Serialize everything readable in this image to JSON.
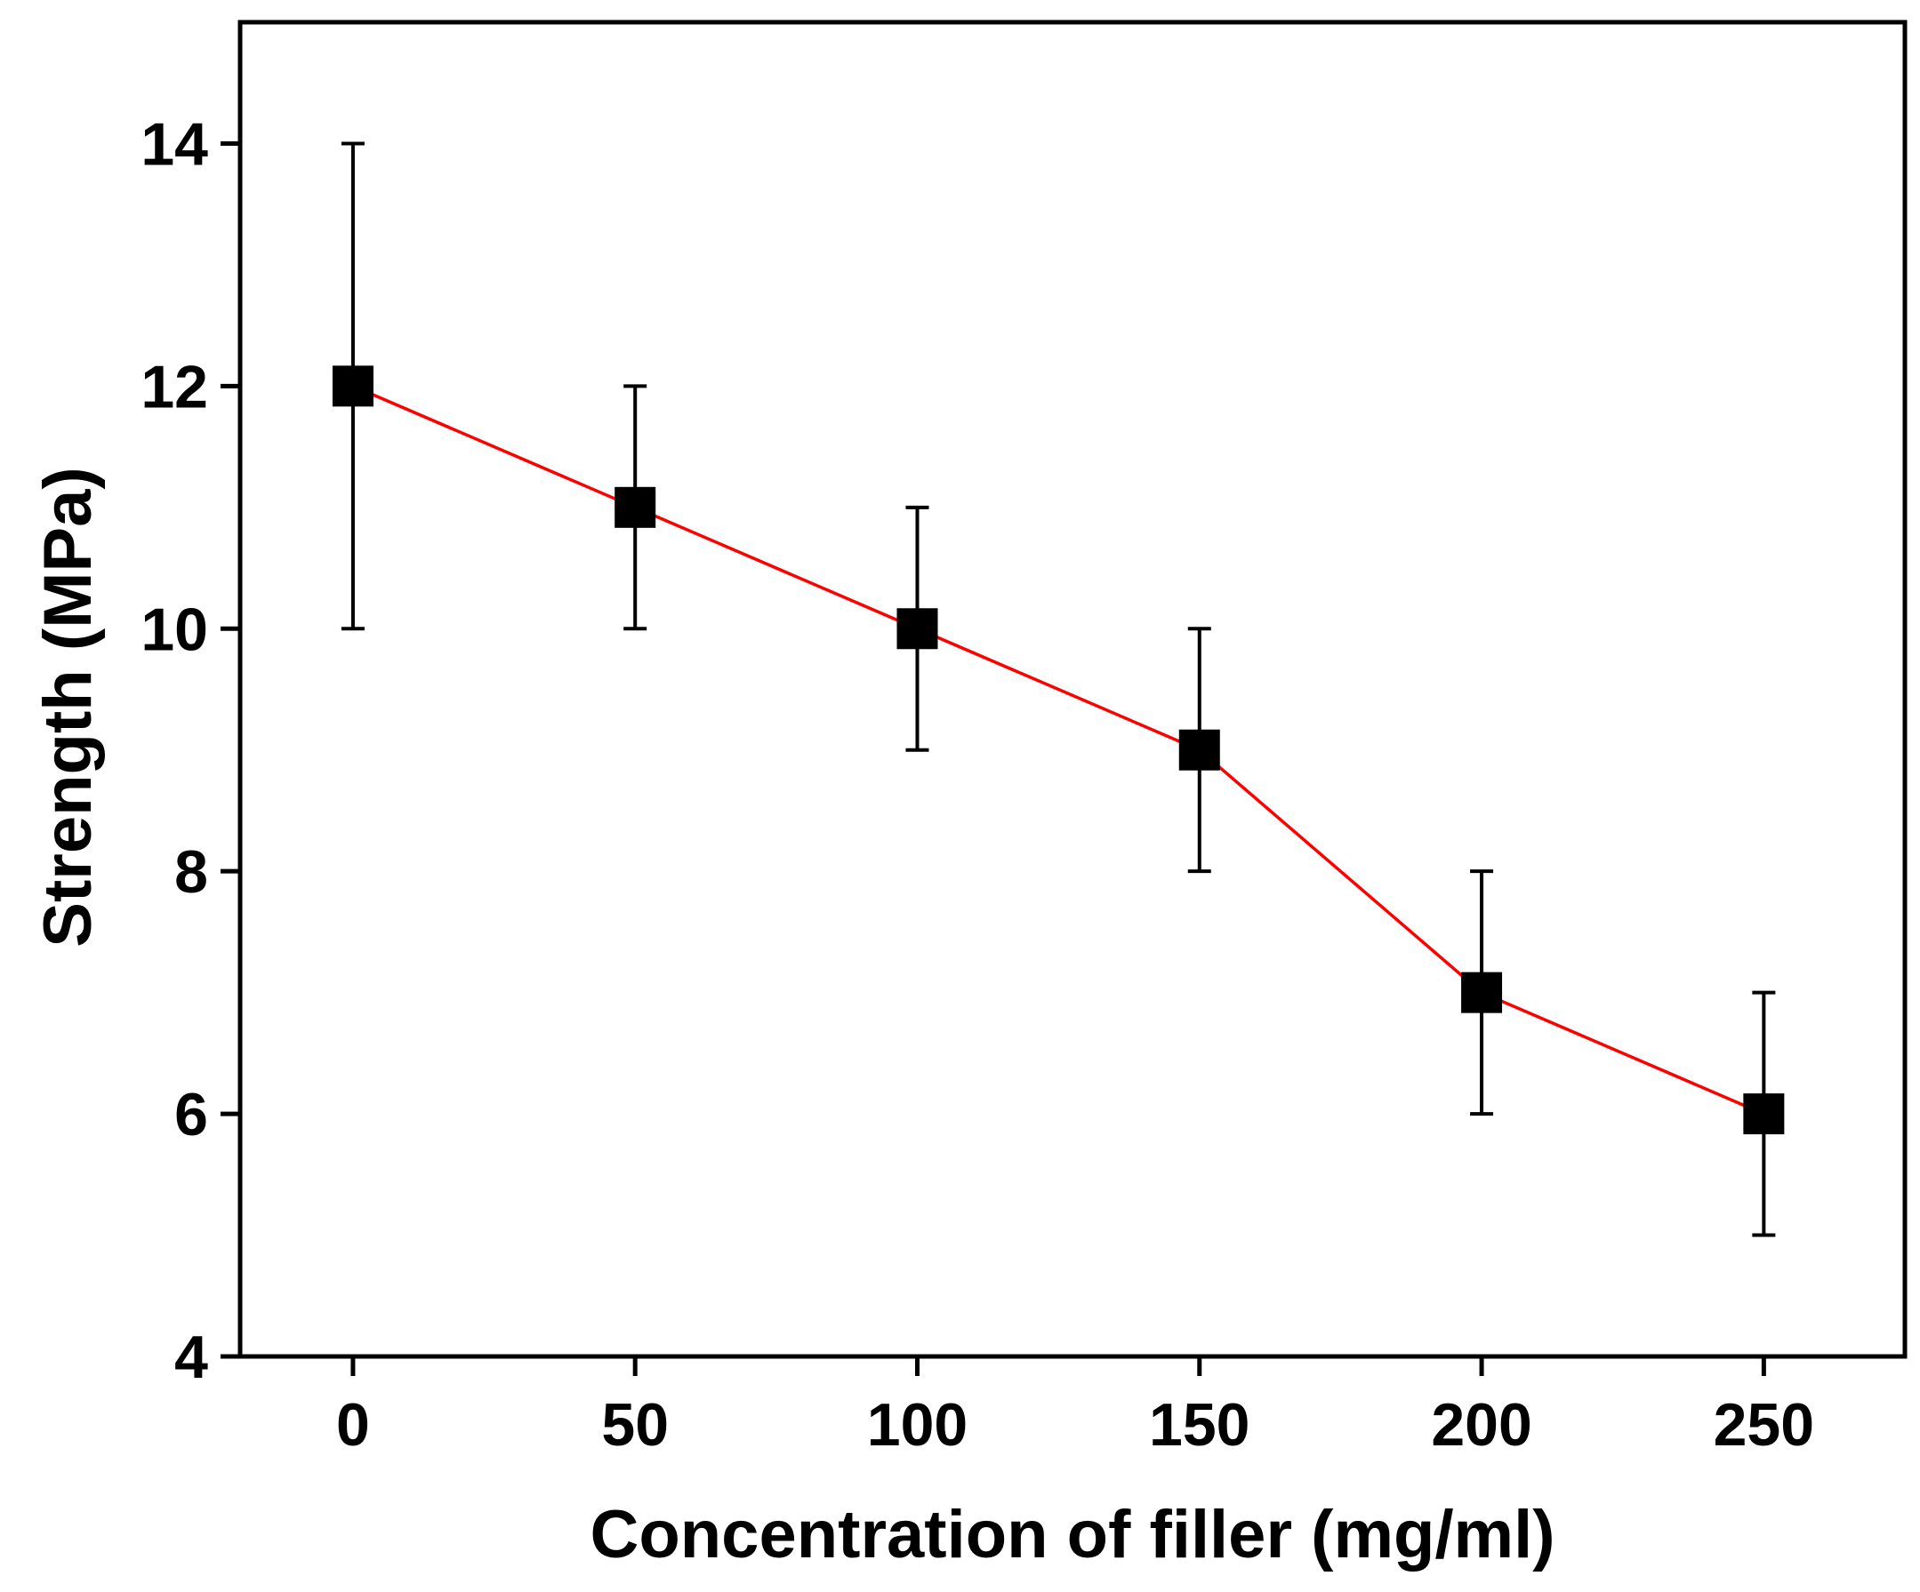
{
  "chart_data": {
    "type": "line",
    "title": "",
    "xlabel": "Concentration of filler (mg/ml)",
    "ylabel": "Strength (MPa)",
    "xlim": [
      -20,
      275
    ],
    "ylim": [
      4,
      15
    ],
    "xticks": [
      0,
      50,
      100,
      150,
      200,
      250
    ],
    "yticks": [
      4,
      6,
      8,
      10,
      12,
      14
    ],
    "grid": false,
    "line_color": "#ff0000",
    "marker_color": "#000000",
    "marker": "square",
    "series": [
      {
        "name": "Strength",
        "x": [
          0,
          50,
          100,
          150,
          200,
          250
        ],
        "y": [
          12,
          11,
          10,
          9,
          7,
          6
        ],
        "yerr": [
          2,
          1,
          1,
          1,
          1,
          1
        ]
      }
    ]
  }
}
